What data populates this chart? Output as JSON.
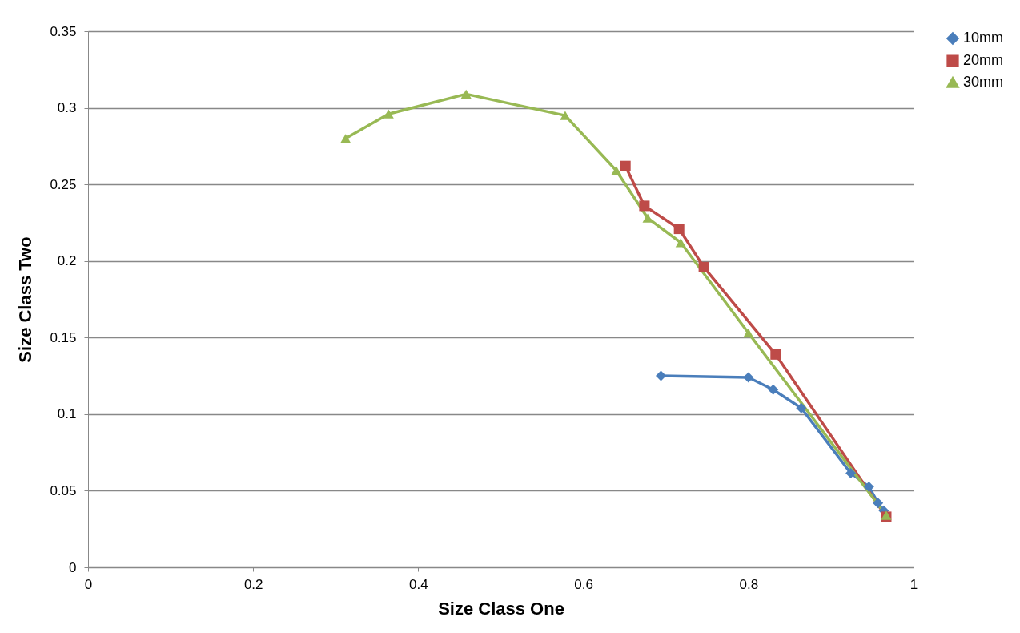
{
  "chart_data": {
    "type": "line",
    "xlabel": "Size Class One",
    "ylabel": "Size Class Two",
    "xlim": [
      0,
      1
    ],
    "xticks": [
      0,
      0.2,
      0.4,
      0.6,
      0.8,
      1
    ],
    "ylim": [
      0,
      0.35
    ],
    "yticks": [
      0,
      0.05,
      0.1,
      0.15,
      0.2,
      0.25,
      0.3,
      0.35
    ],
    "grid": "y",
    "legend": "right",
    "series": [
      {
        "name": "10mm",
        "color": "#4a7ebb",
        "marker": "diamond",
        "x": [
          0.694,
          0.8,
          0.83,
          0.864,
          0.924,
          0.946,
          0.957,
          0.964
        ],
        "values": [
          0.125,
          0.124,
          0.116,
          0.104,
          0.0615,
          0.0526,
          0.042,
          0.037
        ]
      },
      {
        "name": "20mm",
        "color": "#be4b48",
        "marker": "square",
        "x": [
          0.651,
          0.674,
          0.716,
          0.746,
          0.833,
          0.967
        ],
        "values": [
          0.262,
          0.236,
          0.221,
          0.196,
          0.139,
          0.033
        ]
      },
      {
        "name": "30mm",
        "color": "#98b954",
        "marker": "triangle",
        "x": [
          0.312,
          0.364,
          0.458,
          0.578,
          0.64,
          0.678,
          0.718,
          0.8,
          0.967
        ],
        "values": [
          0.28,
          0.296,
          0.309,
          0.295,
          0.259,
          0.228,
          0.212,
          0.153,
          0.034
        ]
      }
    ]
  }
}
